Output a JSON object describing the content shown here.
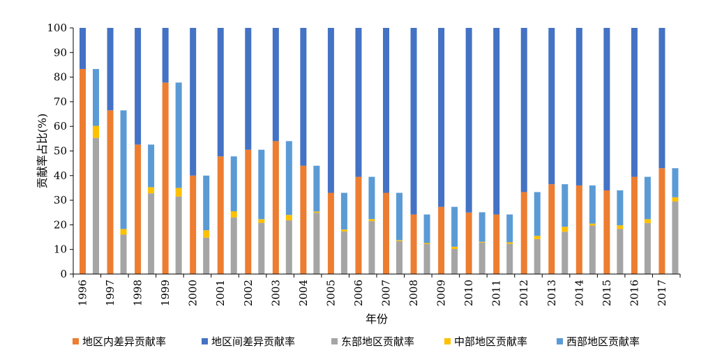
{
  "chart_data": {
    "type": "bar",
    "stacked": true,
    "xlabel": "年份",
    "ylabel": "贡献率占比(%)",
    "ylim": [
      0,
      100
    ],
    "yticks": [
      0,
      10,
      20,
      30,
      40,
      50,
      60,
      70,
      80,
      90,
      100
    ],
    "grid": false,
    "legend_position": "bottom",
    "categories": [
      "1996",
      "1997",
      "1998",
      "1999",
      "2000",
      "2001",
      "2002",
      "2003",
      "2004",
      "2005",
      "2006",
      "2007",
      "2008",
      "2009",
      "2010",
      "2011",
      "2012",
      "2013",
      "2014",
      "2015",
      "2016",
      "2017"
    ],
    "colors": {
      "within": "#ED7D31",
      "between": "#4472C4",
      "east": "#A5A5A5",
      "central": "#FFC000",
      "west": "#5B9BD5"
    },
    "legend": [
      {
        "key": "within",
        "name": "地区内差异贡献率"
      },
      {
        "key": "between",
        "name": "地区间差异贡献率"
      },
      {
        "key": "east",
        "name": "东部地区贡献率"
      },
      {
        "key": "central",
        "name": "中部地区贡献率"
      },
      {
        "key": "west",
        "name": "西部地区贡献率"
      }
    ],
    "bar_a": {
      "within": [
        83.3,
        66.5,
        52.6,
        77.8,
        40.0,
        47.8,
        50.5,
        54.0,
        44.0,
        33.0,
        39.5,
        33.0,
        24.2,
        27.3,
        25.0,
        24.2,
        33.3,
        36.5,
        36.0,
        34.0,
        39.5,
        43.0
      ],
      "between": [
        16.7,
        33.5,
        47.4,
        22.2,
        60.0,
        52.2,
        49.5,
        46.0,
        56.0,
        67.0,
        60.5,
        67.0,
        75.8,
        72.7,
        75.0,
        75.8,
        66.7,
        63.5,
        64.0,
        66.0,
        60.5,
        57.0
      ]
    },
    "bar_b": {
      "east": [
        55.3,
        16.0,
        32.8,
        31.5,
        14.8,
        23.0,
        20.8,
        21.8,
        24.9,
        17.3,
        21.5,
        13.4,
        12.2,
        10.2,
        12.8,
        12.3,
        14.2,
        17.2,
        19.7,
        18.3,
        20.7,
        29.5
      ],
      "central": [
        4.9,
        2.3,
        2.5,
        3.5,
        3.0,
        2.5,
        1.5,
        2.2,
        0.5,
        0.8,
        0.8,
        0.4,
        0.4,
        0.9,
        0.3,
        0.6,
        1.3,
        2.0,
        0.8,
        1.5,
        1.6,
        1.7
      ],
      "west": [
        23.1,
        48.2,
        17.3,
        42.8,
        22.2,
        22.3,
        28.2,
        30.0,
        18.6,
        14.9,
        17.2,
        19.2,
        11.6,
        16.2,
        12.0,
        11.3,
        17.8,
        17.3,
        15.5,
        14.2,
        17.2,
        11.8
      ]
    }
  }
}
